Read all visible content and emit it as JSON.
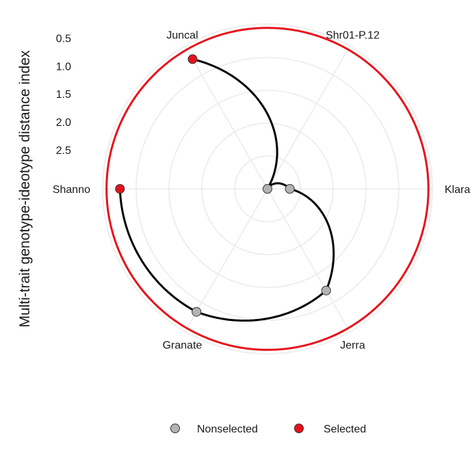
{
  "chart_data": {
    "type": "radar",
    "ylabel": "Multi-trait genotype-ideotype distance index",
    "categories": [
      "Juncal",
      "Shr01-P.12",
      "Klara",
      "Jerra",
      "Granate",
      "Shannon"
    ],
    "category_labels": [
      "Juncal",
      "Shr01-P.12",
      "Klara",
      "Jerra",
      "Granate",
      "Shanno"
    ],
    "r_ticks": [
      0.5,
      1.0,
      1.5,
      2.0,
      2.5
    ],
    "r_tick_labels": [
      "0.5",
      "1.0",
      "1.5",
      "2.0",
      "2.5"
    ],
    "radial_axis": "reversed",
    "r_range": [
      0.25,
      3.2
    ],
    "threshold": {
      "value": 0.32,
      "color": "#e8111a"
    },
    "points": [
      {
        "genotype": "Juncal",
        "value": 0.52,
        "group": "Selected"
      },
      {
        "genotype": "Shr01-P.12",
        "value": 3.2,
        "group": "Nonselected"
      },
      {
        "genotype": "Klara",
        "value": 2.8,
        "group": "Nonselected"
      },
      {
        "genotype": "Jerra",
        "value": 1.1,
        "group": "Nonselected"
      },
      {
        "genotype": "Granate",
        "value": 0.66,
        "group": "Nonselected"
      },
      {
        "genotype": "Shannon",
        "value": 0.56,
        "group": "Selected"
      }
    ],
    "legend": {
      "position": "bottom",
      "entries": [
        {
          "label": "Nonselected",
          "color": "#b3b3b3"
        },
        {
          "label": "Selected",
          "color": "#e8111a"
        }
      ]
    },
    "colors": {
      "curve": "#000000",
      "grid": "#ebebeb",
      "point_outline": "#333333"
    }
  }
}
